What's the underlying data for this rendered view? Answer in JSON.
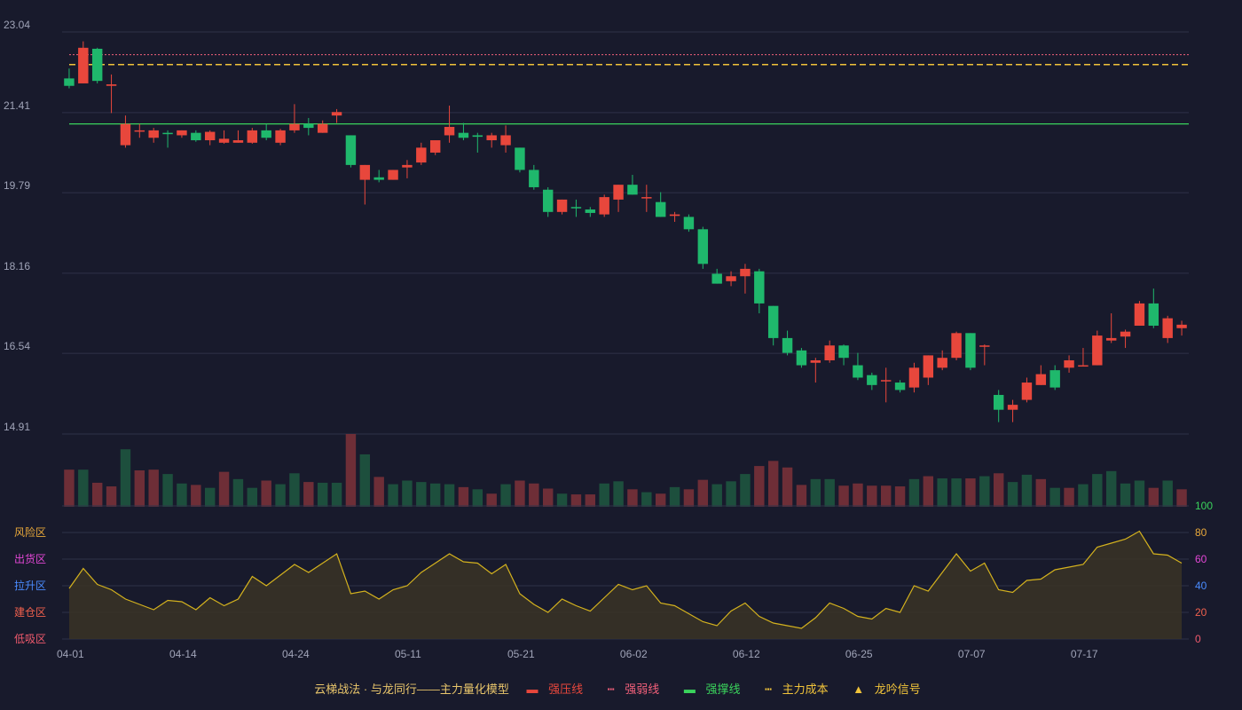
{
  "chart_data": {
    "type": "candlestick",
    "price_axis": {
      "ticks": [
        23.04,
        21.41,
        19.79,
        18.16,
        16.54,
        14.91
      ],
      "ylim": [
        14.91,
        23.04
      ]
    },
    "x_ticks": [
      {
        "i": 0,
        "label": "04-01"
      },
      {
        "i": 8,
        "label": "04-14"
      },
      {
        "i": 16,
        "label": "04-24"
      },
      {
        "i": 24,
        "label": "05-11"
      },
      {
        "i": 32,
        "label": "05-21"
      },
      {
        "i": 40,
        "label": "06-02"
      },
      {
        "i": 48,
        "label": "06-12"
      },
      {
        "i": 56,
        "label": "06-25"
      },
      {
        "i": 64,
        "label": "07-07"
      },
      {
        "i": 72,
        "label": "07-17"
      }
    ],
    "candles": [
      [
        22.1,
        21.95,
        22.3,
        21.9
      ],
      [
        22.0,
        22.72,
        22.85,
        22.0
      ],
      [
        22.7,
        22.05,
        22.72,
        22.0
      ],
      [
        21.95,
        21.98,
        22.18,
        21.4
      ],
      [
        20.75,
        21.18,
        21.35,
        20.7
      ],
      [
        21.05,
        21.05,
        21.18,
        20.9
      ],
      [
        20.9,
        21.05,
        21.1,
        20.8
      ],
      [
        21.0,
        20.98,
        21.05,
        20.7
      ],
      [
        20.95,
        21.05,
        21.05,
        20.9
      ],
      [
        21.0,
        20.85,
        21.05,
        20.82
      ],
      [
        20.85,
        21.02,
        21.05,
        20.75
      ],
      [
        20.8,
        20.88,
        21.05,
        20.78
      ],
      [
        20.8,
        20.85,
        21.05,
        20.8
      ],
      [
        20.8,
        21.05,
        21.1,
        20.78
      ],
      [
        21.05,
        20.9,
        21.18,
        20.85
      ],
      [
        20.8,
        21.05,
        21.08,
        20.75
      ],
      [
        21.05,
        21.18,
        21.58,
        21.0
      ],
      [
        21.18,
        21.1,
        21.3,
        20.95
      ],
      [
        21.0,
        21.18,
        21.25,
        21.0
      ],
      [
        21.35,
        21.42,
        21.48,
        21.2
      ],
      [
        20.95,
        20.35,
        20.95,
        20.3
      ],
      [
        20.05,
        20.35,
        20.35,
        19.55
      ],
      [
        20.1,
        20.05,
        20.25,
        20.0
      ],
      [
        20.05,
        20.25,
        20.25,
        20.05
      ],
      [
        20.3,
        20.35,
        20.45,
        20.08
      ],
      [
        20.4,
        20.7,
        20.8,
        20.35
      ],
      [
        20.6,
        20.85,
        20.85,
        20.55
      ],
      [
        20.95,
        21.12,
        21.55,
        20.8
      ],
      [
        21.0,
        20.9,
        21.2,
        20.85
      ],
      [
        20.95,
        20.92,
        21.0,
        20.6
      ],
      [
        20.85,
        20.95,
        21.0,
        20.7
      ],
      [
        20.75,
        20.95,
        21.15,
        20.6
      ],
      [
        20.7,
        20.25,
        20.7,
        20.2
      ],
      [
        20.25,
        19.9,
        20.35,
        19.85
      ],
      [
        19.85,
        19.4,
        19.9,
        19.3
      ],
      [
        19.4,
        19.65,
        19.65,
        19.35
      ],
      [
        19.5,
        19.48,
        19.65,
        19.3
      ],
      [
        19.45,
        19.38,
        19.5,
        19.3
      ],
      [
        19.35,
        19.7,
        19.75,
        19.3
      ],
      [
        19.65,
        19.95,
        19.95,
        19.4
      ],
      [
        19.95,
        19.75,
        20.15,
        19.75
      ],
      [
        19.7,
        19.7,
        19.95,
        19.4
      ],
      [
        19.6,
        19.3,
        19.8,
        19.3
      ],
      [
        19.32,
        19.35,
        19.4,
        19.2
      ],
      [
        19.3,
        19.05,
        19.35,
        19.0
      ],
      [
        19.05,
        18.35,
        19.1,
        18.25
      ],
      [
        18.15,
        17.95,
        18.25,
        17.95
      ],
      [
        18.0,
        18.1,
        18.2,
        17.9
      ],
      [
        18.1,
        18.25,
        18.35,
        17.75
      ],
      [
        18.2,
        17.55,
        18.25,
        17.35
      ],
      [
        17.5,
        16.85,
        17.5,
        16.7
      ],
      [
        16.85,
        16.55,
        17.0,
        16.5
      ],
      [
        16.6,
        16.3,
        16.65,
        16.25
      ],
      [
        16.35,
        16.4,
        16.45,
        15.95
      ],
      [
        16.4,
        16.7,
        16.8,
        16.35
      ],
      [
        16.7,
        16.45,
        16.72,
        16.3
      ],
      [
        16.3,
        16.05,
        16.55,
        16.0
      ],
      [
        16.1,
        15.9,
        16.15,
        15.8
      ],
      [
        16.0,
        16.0,
        16.25,
        15.55
      ],
      [
        15.95,
        15.8,
        16.0,
        15.75
      ],
      [
        15.85,
        16.25,
        16.35,
        15.75
      ],
      [
        16.05,
        16.5,
        16.5,
        15.9
      ],
      [
        16.25,
        16.45,
        16.6,
        16.2
      ],
      [
        16.45,
        16.95,
        16.98,
        16.4
      ],
      [
        16.95,
        16.25,
        16.95,
        16.2
      ],
      [
        16.7,
        16.7,
        16.72,
        16.3
      ],
      [
        15.7,
        15.4,
        15.8,
        15.15
      ],
      [
        15.4,
        15.5,
        15.6,
        15.15
      ],
      [
        15.6,
        15.95,
        16.05,
        15.55
      ],
      [
        15.9,
        16.12,
        16.3,
        15.9
      ],
      [
        16.2,
        15.85,
        16.3,
        15.8
      ],
      [
        16.25,
        16.4,
        16.5,
        16.15
      ],
      [
        16.3,
        16.3,
        16.65,
        16.3
      ],
      [
        16.3,
        16.9,
        17.0,
        16.3
      ],
      [
        16.8,
        16.85,
        17.35,
        16.75
      ],
      [
        16.88,
        16.98,
        17.02,
        16.65
      ],
      [
        17.1,
        17.55,
        17.6,
        17.1
      ],
      [
        17.55,
        17.1,
        17.85,
        17.05
      ],
      [
        16.85,
        17.25,
        17.3,
        16.75
      ],
      [
        17.05,
        17.12,
        17.2,
        16.9
      ]
    ],
    "volume": [
      [
        5.1,
        1
      ],
      [
        5.1,
        0
      ],
      [
        3.3,
        1
      ],
      [
        2.8,
        1
      ],
      [
        7.9,
        0
      ],
      [
        5.0,
        1
      ],
      [
        5.1,
        1
      ],
      [
        4.5,
        0
      ],
      [
        3.2,
        0
      ],
      [
        3.0,
        1
      ],
      [
        2.6,
        0
      ],
      [
        4.8,
        1
      ],
      [
        3.8,
        0
      ],
      [
        2.6,
        0
      ],
      [
        3.6,
        1
      ],
      [
        3.1,
        0
      ],
      [
        4.6,
        0
      ],
      [
        3.4,
        1
      ],
      [
        3.3,
        0
      ],
      [
        3.3,
        0
      ],
      [
        10.0,
        1
      ],
      [
        7.2,
        0
      ],
      [
        4.1,
        1
      ],
      [
        3.1,
        0
      ],
      [
        3.6,
        0
      ],
      [
        3.4,
        0
      ],
      [
        3.2,
        0
      ],
      [
        3.1,
        0
      ],
      [
        2.7,
        1
      ],
      [
        2.4,
        0
      ],
      [
        1.8,
        1
      ],
      [
        3.1,
        0
      ],
      [
        3.6,
        1
      ],
      [
        3.2,
        1
      ],
      [
        2.5,
        1
      ],
      [
        1.8,
        0
      ],
      [
        1.7,
        1
      ],
      [
        1.7,
        1
      ],
      [
        3.2,
        0
      ],
      [
        3.5,
        0
      ],
      [
        2.4,
        1
      ],
      [
        2.0,
        0
      ],
      [
        1.8,
        1
      ],
      [
        2.7,
        0
      ],
      [
        2.4,
        1
      ],
      [
        3.7,
        1
      ],
      [
        3.1,
        0
      ],
      [
        3.5,
        0
      ],
      [
        4.5,
        0
      ],
      [
        5.6,
        1
      ],
      [
        6.3,
        1
      ],
      [
        5.4,
        1
      ],
      [
        3.0,
        1
      ],
      [
        3.8,
        0
      ],
      [
        3.8,
        0
      ],
      [
        2.9,
        1
      ],
      [
        3.2,
        1
      ],
      [
        2.9,
        1
      ],
      [
        2.9,
        1
      ],
      [
        2.8,
        1
      ],
      [
        3.8,
        0
      ],
      [
        4.2,
        1
      ],
      [
        3.9,
        0
      ],
      [
        3.9,
        0
      ],
      [
        3.9,
        1
      ],
      [
        4.2,
        0
      ],
      [
        4.6,
        1
      ],
      [
        3.4,
        0
      ],
      [
        4.4,
        0
      ],
      [
        3.8,
        1
      ],
      [
        2.6,
        0
      ],
      [
        2.6,
        1
      ],
      [
        3.1,
        0
      ],
      [
        4.5,
        0
      ],
      [
        4.9,
        0
      ],
      [
        3.2,
        0
      ],
      [
        3.6,
        0
      ],
      [
        2.6,
        1
      ],
      [
        3.6,
        0
      ],
      [
        2.4,
        1
      ]
    ],
    "indicator": [
      38,
      53,
      41,
      37,
      30,
      26,
      22,
      29,
      28,
      22,
      31,
      25,
      30,
      47,
      40,
      48,
      56,
      50,
      57,
      64,
      34,
      36,
      30,
      37,
      40,
      50,
      57,
      64,
      58,
      57,
      49,
      56,
      34,
      26,
      20,
      30,
      25,
      21,
      31,
      41,
      37,
      40,
      27,
      25,
      19,
      13,
      10,
      21,
      27,
      17,
      12,
      10,
      8,
      16,
      27,
      23,
      17,
      15,
      23,
      20,
      40,
      36,
      50,
      64,
      51,
      57,
      37,
      35,
      44,
      45,
      52,
      54,
      56,
      69,
      72,
      75,
      81,
      64,
      63,
      57
    ],
    "levels": {
      "strong_resistance": 22.72,
      "weak_resistance": 22.58,
      "main_cost": 22.38,
      "support": 21.18
    },
    "indicator_axis": {
      "ticks": [
        0,
        20,
        40,
        60,
        80,
        100
      ]
    },
    "zones": [
      {
        "label": "风险区",
        "value": 80,
        "color": "#e8a83a"
      },
      {
        "label": "出货区",
        "value": 60,
        "color": "#e247d5"
      },
      {
        "label": "拉升区",
        "value": 40,
        "color": "#4a8cff"
      },
      {
        "label": "建仓区",
        "value": 20,
        "color": "#f0604d"
      },
      {
        "label": "低吸区",
        "value": 0,
        "color": "#f05a6d"
      }
    ],
    "legend": {
      "title": "云梯战法 · 与龙同行——主力量化模型",
      "strong_resistance": "强压线",
      "weak_resistance": "强弱线",
      "support": "强撑线",
      "main_cost": "主力成本",
      "signal": "龙吟信号"
    },
    "colors": {
      "up": "#e8473c",
      "down": "#1fb86c",
      "vol_up": "#6e2e37",
      "vol_down": "#1d4f3d",
      "strong_resistance": "#e8473c",
      "weak_resistance": "#f2607a",
      "support": "#3ad35c",
      "main_cost": "#f0c33a",
      "indicator_line": "#d4b21e",
      "signal": "#f0c33a"
    }
  }
}
